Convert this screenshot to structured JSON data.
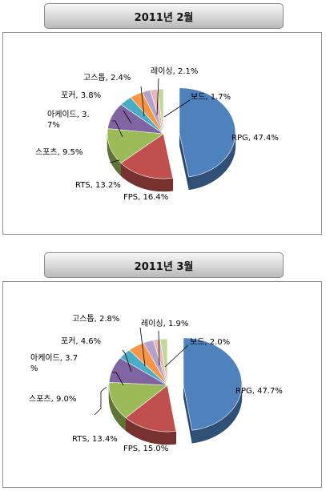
{
  "chart_data": [
    {
      "type": "pie",
      "title": "2011년 2월",
      "colors": [
        "#4f81bd",
        "#c0504d",
        "#9bbb59",
        "#8064a2",
        "#4bacc6",
        "#f79646",
        "#b5a2cb",
        "#e6b9b8",
        "#c3d69b"
      ],
      "slices": [
        {
          "category": "RPG",
          "value": 47.4,
          "label": "RPG, 47.4%"
        },
        {
          "category": "FPS",
          "value": 16.4,
          "label": "FPS, 16.4%"
        },
        {
          "category": "RTS",
          "value": 13.2,
          "label": "RTS, 13.2%"
        },
        {
          "category": "스포츠",
          "value": 9.5,
          "label": "스포츠, 9.5%"
        },
        {
          "category": "아케이드",
          "value": 3.7,
          "label_lines": [
            "아케이드, 3.",
            "7%"
          ]
        },
        {
          "category": "포커",
          "value": 3.8,
          "label": "포커, 3.8%"
        },
        {
          "category": "고스톱",
          "value": 2.4,
          "label": "고스톱, 2.4%"
        },
        {
          "category": "레이싱",
          "value": 2.1,
          "label": "레이싱, 2.1%"
        },
        {
          "category": "보드",
          "value": 1.7,
          "label": "보드, 1.7%"
        }
      ]
    },
    {
      "type": "pie",
      "title": "2011년 3월",
      "colors": [
        "#4f81bd",
        "#c0504d",
        "#9bbb59",
        "#8064a2",
        "#4bacc6",
        "#f79646",
        "#b5a2cb",
        "#e6b9b8",
        "#c3d69b"
      ],
      "slices": [
        {
          "category": "RPG",
          "value": 47.7,
          "label": "RPG, 47.7%"
        },
        {
          "category": "FPS",
          "value": 15.0,
          "label": "FPS, 15.0%"
        },
        {
          "category": "RTS",
          "value": 13.4,
          "label": "RTS, 13.4%"
        },
        {
          "category": "스포츠",
          "value": 9.0,
          "label": "스포츠, 9.0%"
        },
        {
          "category": "아케이드",
          "value": 3.7,
          "label_lines": [
            "아케이드, 3.7",
            "%"
          ]
        },
        {
          "category": "포커",
          "value": 4.6,
          "label": "포커, 4.6%"
        },
        {
          "category": "고스톱",
          "value": 2.8,
          "label": "고스톱, 2.8%"
        },
        {
          "category": "레이싱",
          "value": 1.9,
          "label": "레이싱, 1.9%"
        },
        {
          "category": "보드",
          "value": 2.0,
          "label": "보드, 2.0%"
        }
      ]
    }
  ]
}
